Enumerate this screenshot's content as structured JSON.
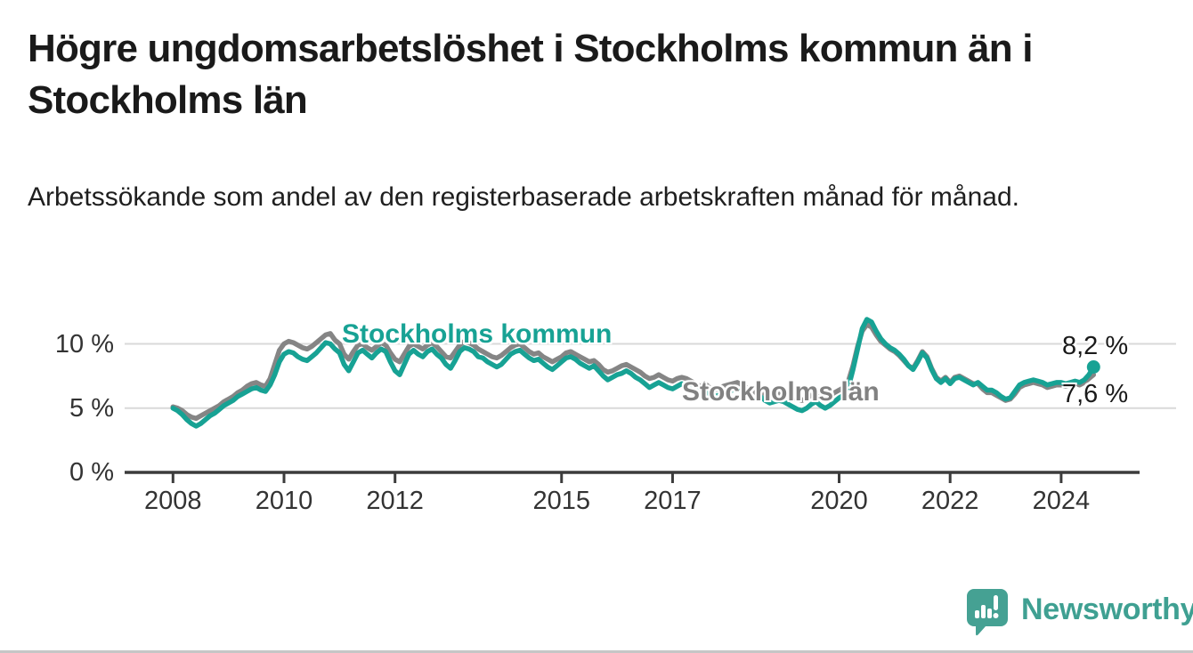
{
  "header": {
    "title": "Högre ungdomsarbetslöshet i Stockholms kommun än i Stockholms län",
    "subtitle": "Arbetssökande som andel av den registerbaserade arbetskraften månad för månad."
  },
  "branding": {
    "logo_text": "Newsworthy",
    "logo_color": "#3fa092",
    "icon_name": "newsworthy-speech-bubble-bar-chart-icon"
  },
  "colors": {
    "kommun_line": "#17a294",
    "lan_line": "#858585",
    "gridline": "#d9d9d9",
    "axis": "#3c3c3c",
    "axis_text": "#333333"
  },
  "chart_data": {
    "type": "line",
    "title": "",
    "xlabel": "",
    "ylabel": "",
    "unit": "%",
    "grid": "horizontal",
    "x_start_year": 2008,
    "x_months_per_step": 1,
    "xlim": [
      2007.1,
      2025.4
    ],
    "ylim": [
      0,
      12.5
    ],
    "y_ticks": [
      {
        "value": 0,
        "label": "0 %"
      },
      {
        "value": 5,
        "label": "5 %"
      },
      {
        "value": 10,
        "label": "10 %"
      }
    ],
    "x_ticks": [
      {
        "value": 2008,
        "label": "2008"
      },
      {
        "value": 2010,
        "label": "2010"
      },
      {
        "value": 2012,
        "label": "2012"
      },
      {
        "value": 2015,
        "label": "2015"
      },
      {
        "value": 2017,
        "label": "2017"
      },
      {
        "value": 2020,
        "label": "2020"
      },
      {
        "value": 2022,
        "label": "2022"
      },
      {
        "value": 2024,
        "label": "2024"
      }
    ],
    "series": [
      {
        "name": "Stockholms län",
        "color": "#858585",
        "end_dot": false,
        "values": [
          5.1,
          5.0,
          4.8,
          4.5,
          4.3,
          4.2,
          4.4,
          4.6,
          4.8,
          5.0,
          5.2,
          5.5,
          5.7,
          5.9,
          6.2,
          6.4,
          6.7,
          6.9,
          7.0,
          6.8,
          6.7,
          7.3,
          8.4,
          9.5,
          10.0,
          10.2,
          10.1,
          9.9,
          9.7,
          9.6,
          9.8,
          10.1,
          10.4,
          10.7,
          10.8,
          10.3,
          10.0,
          9.2,
          8.8,
          9.4,
          9.9,
          10.0,
          9.7,
          9.5,
          9.8,
          10.1,
          9.9,
          9.3,
          8.8,
          8.6,
          9.2,
          9.8,
          10.0,
          9.8,
          9.6,
          9.9,
          10.1,
          9.8,
          9.4,
          9.0,
          8.9,
          9.4,
          9.9,
          10.2,
          10.1,
          9.9,
          9.6,
          9.4,
          9.2,
          9.0,
          8.9,
          9.1,
          9.4,
          9.7,
          9.9,
          10.0,
          9.7,
          9.4,
          9.2,
          9.3,
          9.0,
          8.8,
          8.6,
          8.8,
          9.0,
          9.3,
          9.4,
          9.2,
          9.0,
          8.8,
          8.6,
          8.7,
          8.4,
          8.0,
          7.8,
          7.9,
          8.1,
          8.3,
          8.4,
          8.2,
          8.0,
          7.8,
          7.5,
          7.3,
          7.4,
          7.6,
          7.4,
          7.2,
          7.1,
          7.3,
          7.4,
          7.3,
          7.1,
          6.9,
          6.7,
          6.9,
          6.6,
          6.4,
          6.5,
          6.7,
          6.8,
          6.9,
          7.0,
          6.8,
          6.6,
          6.4,
          6.2,
          6.4,
          6.1,
          5.9,
          6.0,
          6.1,
          6.0,
          5.9,
          5.8,
          5.7,
          5.6,
          5.8,
          6.0,
          6.2,
          5.9,
          5.8,
          6.0,
          6.2,
          6.4,
          6.6,
          7.1,
          8.3,
          9.8,
          11.0,
          11.5,
          11.3,
          10.7,
          10.2,
          9.9,
          9.6,
          9.4,
          9.1,
          8.7,
          8.3,
          8.1,
          8.7,
          9.4,
          9.0,
          8.1,
          7.4,
          7.1,
          7.4,
          7.0,
          7.4,
          7.5,
          7.3,
          7.1,
          6.9,
          6.9,
          6.5,
          6.2,
          6.2,
          6.0,
          5.8,
          5.6,
          5.7,
          6.1,
          6.6,
          6.8,
          6.9,
          7.0,
          6.9,
          6.8,
          6.6,
          6.7,
          6.8,
          6.8,
          6.7,
          6.8,
          6.9,
          6.8,
          7.0,
          7.3,
          7.6
        ]
      },
      {
        "name": "Stockholms kommun",
        "color": "#17a294",
        "end_dot": true,
        "values": [
          5.0,
          4.8,
          4.5,
          4.1,
          3.8,
          3.6,
          3.8,
          4.1,
          4.4,
          4.6,
          4.9,
          5.2,
          5.4,
          5.6,
          5.9,
          6.1,
          6.3,
          6.5,
          6.6,
          6.4,
          6.3,
          6.8,
          7.6,
          8.6,
          9.2,
          9.4,
          9.3,
          9.0,
          8.8,
          8.7,
          9.0,
          9.3,
          9.7,
          10.1,
          10.0,
          9.6,
          9.3,
          8.4,
          7.9,
          8.6,
          9.3,
          9.5,
          9.2,
          8.9,
          9.3,
          9.6,
          9.4,
          8.6,
          7.9,
          7.6,
          8.4,
          9.2,
          9.5,
          9.2,
          9.0,
          9.4,
          9.6,
          9.2,
          8.9,
          8.4,
          8.1,
          8.7,
          9.4,
          9.7,
          9.6,
          9.4,
          9.0,
          8.9,
          8.6,
          8.4,
          8.2,
          8.4,
          8.8,
          9.2,
          9.4,
          9.5,
          9.2,
          8.9,
          8.7,
          8.8,
          8.5,
          8.2,
          8.0,
          8.3,
          8.6,
          8.9,
          9.0,
          8.8,
          8.5,
          8.3,
          8.1,
          8.3,
          7.9,
          7.5,
          7.2,
          7.4,
          7.6,
          7.7,
          7.9,
          7.7,
          7.4,
          7.2,
          6.9,
          6.6,
          6.8,
          7.0,
          6.8,
          6.6,
          6.5,
          6.7,
          6.9,
          6.8,
          6.6,
          6.4,
          6.2,
          6.4,
          6.1,
          5.9,
          6.0,
          6.2,
          6.3,
          6.4,
          6.5,
          6.3,
          6.1,
          5.9,
          5.7,
          5.9,
          5.6,
          5.4,
          5.5,
          5.6,
          5.5,
          5.3,
          5.1,
          4.9,
          4.8,
          5.0,
          5.3,
          5.5,
          5.2,
          5.0,
          5.2,
          5.5,
          5.8,
          6.0,
          6.6,
          8.0,
          9.6,
          11.2,
          11.9,
          11.7,
          11.0,
          10.4,
          10.0,
          9.7,
          9.5,
          9.2,
          8.8,
          8.3,
          8.0,
          8.6,
          9.3,
          8.9,
          8.0,
          7.3,
          7.0,
          7.3,
          6.9,
          7.3,
          7.4,
          7.2,
          7.0,
          6.8,
          7.0,
          6.7,
          6.4,
          6.4,
          6.2,
          5.9,
          5.7,
          5.8,
          6.3,
          6.8,
          7.0,
          7.1,
          7.2,
          7.1,
          7.0,
          6.8,
          6.9,
          7.0,
          7.0,
          6.9,
          7.0,
          7.1,
          7.0,
          7.2,
          7.6,
          8.2
        ]
      }
    ],
    "series_labels": [
      {
        "text": "Stockholms kommun",
        "color": "#17a294"
      },
      {
        "text": "Stockholms län",
        "color": "#818181"
      }
    ],
    "annotations": [
      {
        "text": "8,2 %",
        "value": 8.2,
        "series": "Stockholms kommun"
      },
      {
        "text": "7,6 %",
        "value": 7.6,
        "series": "Stockholms län"
      }
    ]
  }
}
